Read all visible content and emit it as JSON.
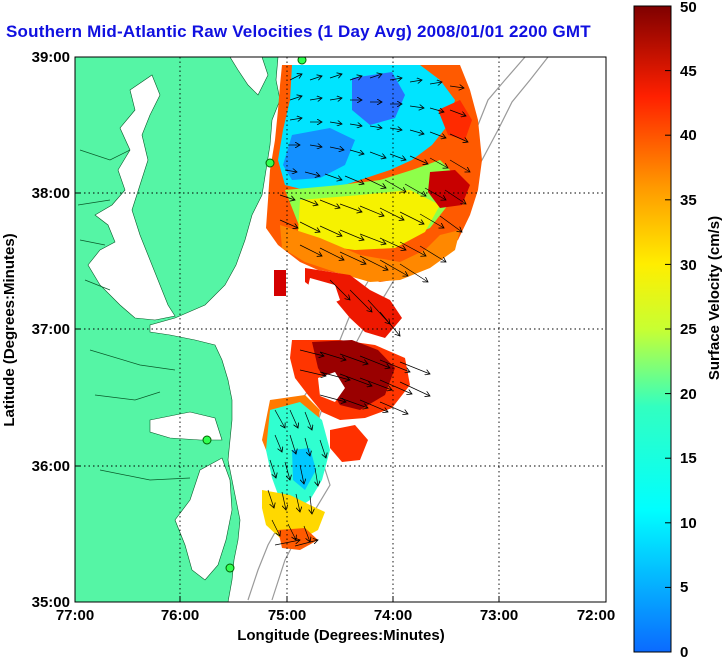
{
  "title": "Southern Mid-Atlantic Raw Velocities (1 Day Avg) 2008/01/01 2200 GMT",
  "map": {
    "xlabel": "Longitude (Degrees:Minutes)",
    "ylabel": "Latitude (Degrees:Minutes)",
    "x_ticks": [
      "77:00",
      "76:00",
      "75:00",
      "74:00",
      "73:00",
      "72:00"
    ],
    "y_ticks": [
      "39:00",
      "38:00",
      "37:00",
      "36:00",
      "35:00"
    ],
    "lon_range": [
      -77,
      -72
    ],
    "lat_range": [
      35,
      39
    ],
    "land_color": "#55f5a5",
    "grid": "dotted"
  },
  "colorbar": {
    "label": "Surface Velocity (cm/s)",
    "ticks": [
      "0",
      "5",
      "10",
      "15",
      "20",
      "25",
      "30",
      "35",
      "40",
      "45",
      "50"
    ],
    "range": [
      0,
      50
    ],
    "colormap": "jet"
  }
}
